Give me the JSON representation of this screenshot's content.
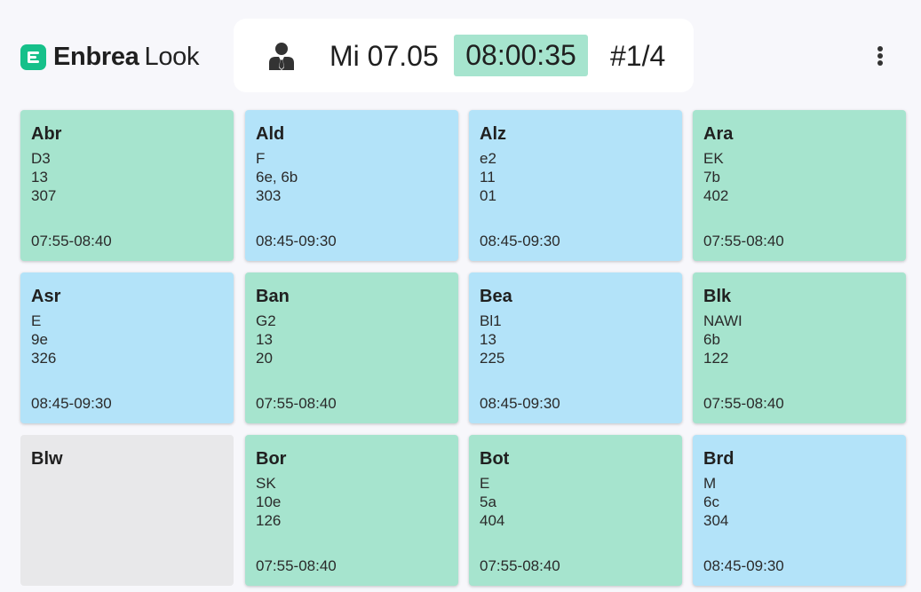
{
  "app": {
    "logo_bold": "Enbrea",
    "logo_light": "Look"
  },
  "header": {
    "user_icon": "user-tie-icon",
    "date": "Mi 07.05",
    "time": "08:00:35",
    "counter": "#1/4",
    "menu_icon": "kebab-menu-icon"
  },
  "colors": {
    "brand": "#16c08a",
    "current": "#a6e4ce",
    "upcoming": "#b3e3f9",
    "empty": "#e8e8ea"
  },
  "cards": [
    {
      "name": "Abr",
      "subject": "D3",
      "class": "13",
      "room": "307",
      "time": "07:55-08:40",
      "status": "current"
    },
    {
      "name": "Ald",
      "subject": "F",
      "class": "6e, 6b",
      "room": "303",
      "time": "08:45-09:30",
      "status": "upcoming"
    },
    {
      "name": "Alz",
      "subject": "e2",
      "class": "11",
      "room": "01",
      "time": "08:45-09:30",
      "status": "upcoming"
    },
    {
      "name": "Ara",
      "subject": "EK",
      "class": "7b",
      "room": "402",
      "time": "07:55-08:40",
      "status": "current"
    },
    {
      "name": "Asr",
      "subject": "E",
      "class": "9e",
      "room": "326",
      "time": "08:45-09:30",
      "status": "upcoming"
    },
    {
      "name": "Ban",
      "subject": "G2",
      "class": "13",
      "room": "20",
      "time": "07:55-08:40",
      "status": "current"
    },
    {
      "name": "Bea",
      "subject": "Bl1",
      "class": "13",
      "room": "225",
      "time": "08:45-09:30",
      "status": "upcoming"
    },
    {
      "name": "Blk",
      "subject": "NAWI",
      "class": "6b",
      "room": "122",
      "time": "07:55-08:40",
      "status": "current"
    },
    {
      "name": "Blw",
      "subject": "",
      "class": "",
      "room": "",
      "time": "",
      "status": "empty"
    },
    {
      "name": "Bor",
      "subject": "SK",
      "class": "10e",
      "room": "126",
      "time": "07:55-08:40",
      "status": "current"
    },
    {
      "name": "Bot",
      "subject": "E",
      "class": "5a",
      "room": "404",
      "time": "07:55-08:40",
      "status": "current"
    },
    {
      "name": "Brd",
      "subject": "M",
      "class": "6c",
      "room": "304",
      "time": "08:45-09:30",
      "status": "upcoming"
    }
  ]
}
